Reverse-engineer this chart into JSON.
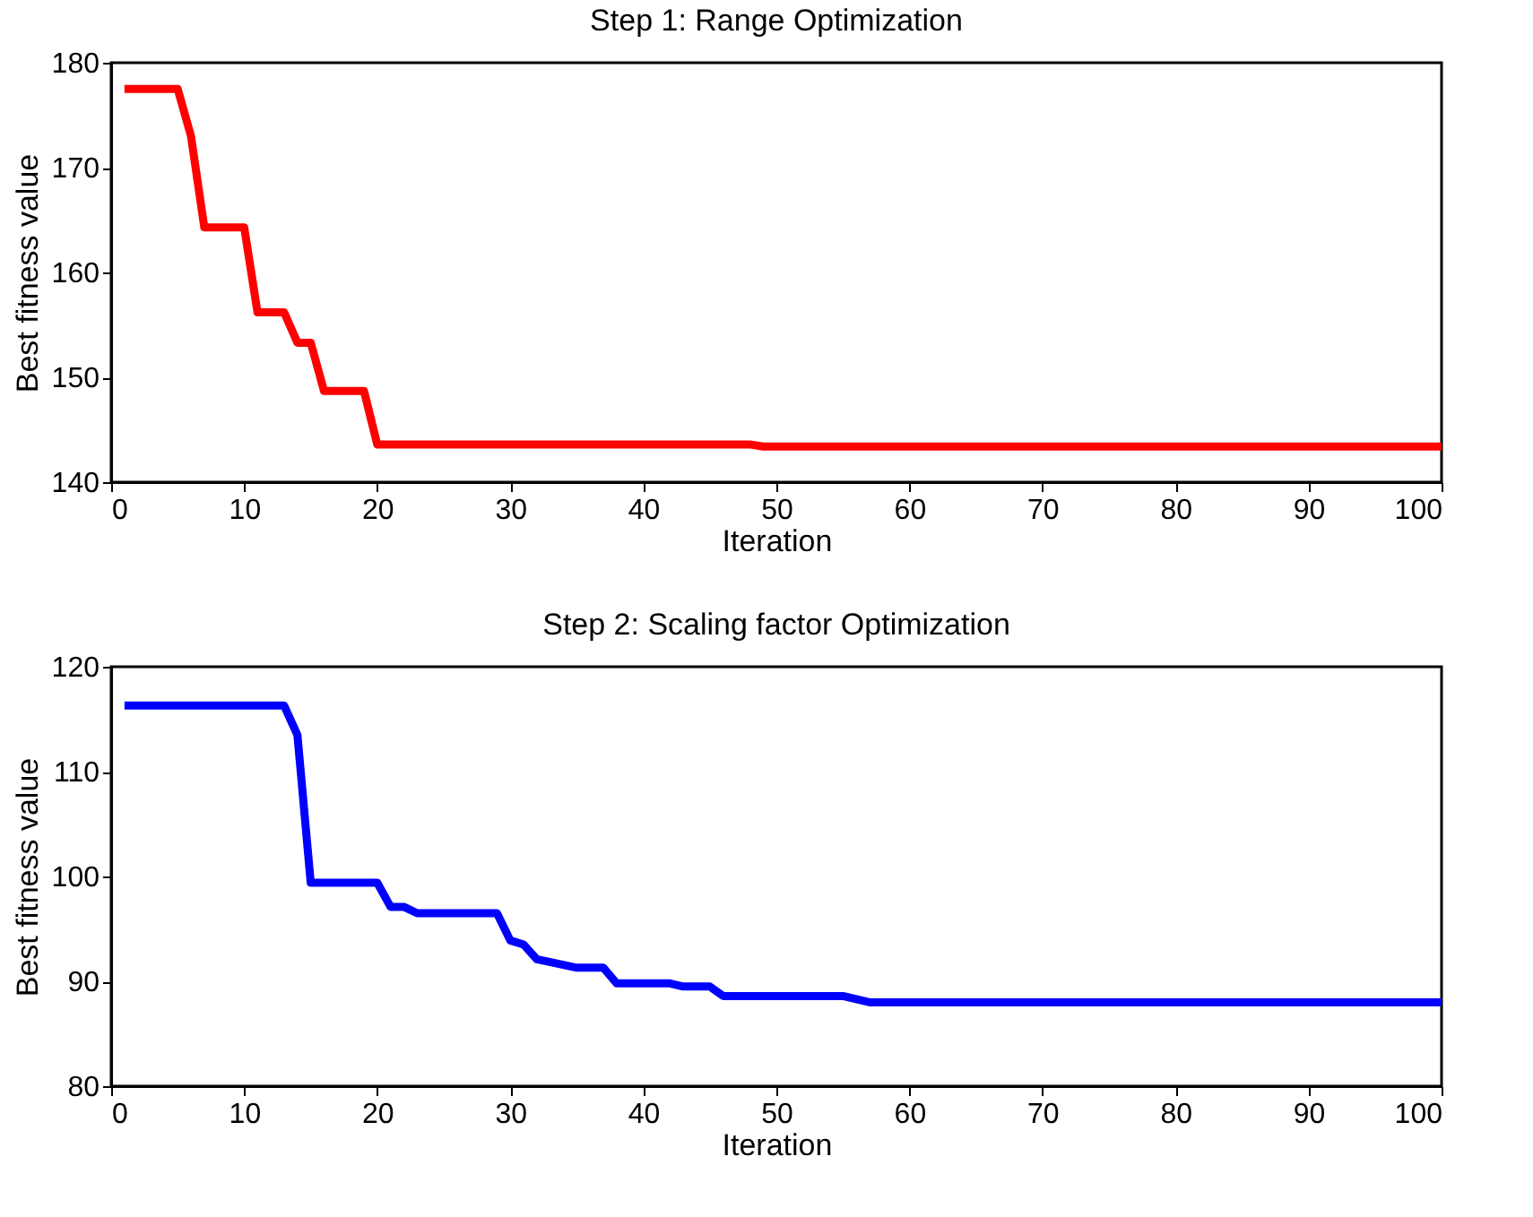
{
  "chart_data": [
    {
      "type": "line",
      "title": "Step 1: Range Optimization",
      "xlabel": "Iteration",
      "ylabel": "Best fitness value",
      "xlim": [
        0,
        100
      ],
      "ylim": [
        140,
        180
      ],
      "xticks": [
        0,
        10,
        20,
        30,
        40,
        50,
        60,
        70,
        80,
        90,
        100
      ],
      "yticks": [
        140,
        150,
        160,
        170,
        180
      ],
      "grid": false,
      "series": [
        {
          "color": "#ff0000",
          "x": [
            1,
            5,
            6,
            7,
            10,
            11,
            13,
            14,
            15,
            16,
            19,
            20,
            48,
            49,
            100
          ],
          "values": [
            177.5,
            177.5,
            173,
            164.3,
            164.3,
            156.2,
            156.2,
            153.3,
            153.3,
            148.7,
            148.7,
            143.6,
            143.6,
            143.4,
            143.4
          ]
        }
      ]
    },
    {
      "type": "line",
      "title": "Step 2: Scaling factor Optimization",
      "xlabel": "Iteration",
      "ylabel": "Best fitness value",
      "xlim": [
        0,
        100
      ],
      "ylim": [
        80,
        120
      ],
      "xticks": [
        0,
        10,
        20,
        30,
        40,
        50,
        60,
        70,
        80,
        90,
        100
      ],
      "yticks": [
        80,
        90,
        100,
        110,
        120
      ],
      "grid": false,
      "series": [
        {
          "color": "#0000ff",
          "x": [
            1,
            13,
            14,
            15,
            20,
            21,
            22,
            23,
            29,
            30,
            31,
            32,
            35,
            37,
            38,
            42,
            43,
            45,
            46,
            55,
            57,
            100
          ],
          "values": [
            116.3,
            116.3,
            113.5,
            99.4,
            99.4,
            97.1,
            97.1,
            96.5,
            96.5,
            93.9,
            93.5,
            92.1,
            91.3,
            91.3,
            89.8,
            89.8,
            89.5,
            89.5,
            88.6,
            88.6,
            88.0,
            88.0
          ]
        }
      ]
    }
  ]
}
